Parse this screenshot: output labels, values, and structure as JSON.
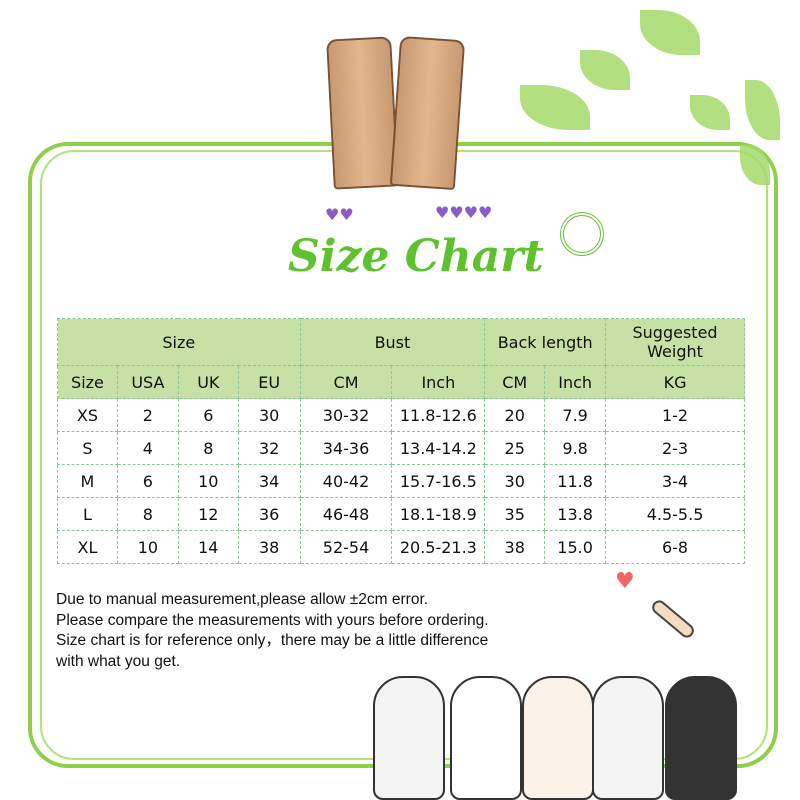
{
  "title": "Size Chart",
  "table": {
    "group_headers": [
      "Size",
      "Bust",
      "Back length",
      "Suggested Weight"
    ],
    "sub_headers": [
      "Size",
      "USA",
      "UK",
      "EU",
      "CM",
      "Inch",
      "CM",
      "Inch",
      "KG"
    ],
    "rows": [
      [
        "XS",
        "2",
        "6",
        "30",
        "30-32",
        "11.8-12.6",
        "20",
        "7.9",
        "1-2"
      ],
      [
        "S",
        "4",
        "8",
        "32",
        "34-36",
        "13.4-14.2",
        "25",
        "9.8",
        "2-3"
      ],
      [
        "M",
        "6",
        "10",
        "34",
        "40-42",
        "15.7-16.5",
        "30",
        "11.8",
        "3-4"
      ],
      [
        "L",
        "8",
        "12",
        "36",
        "46-48",
        "18.1-18.9",
        "35",
        "13.8",
        "4.5-5.5"
      ],
      [
        "XL",
        "10",
        "14",
        "38",
        "52-54",
        "20.5-21.3",
        "38",
        "15.0",
        "6-8"
      ]
    ]
  },
  "notes": [
    "Due to manual measurement,please allow ±2cm error.",
    "Please compare the measurements with yours before ordering.",
    "Size chart is for reference only，there may be a little difference",
    "with what you get."
  ],
  "colors": {
    "accent": "#5dc22e",
    "header_bg": "#c7e0a6",
    "frame": "#8fcf4a"
  }
}
